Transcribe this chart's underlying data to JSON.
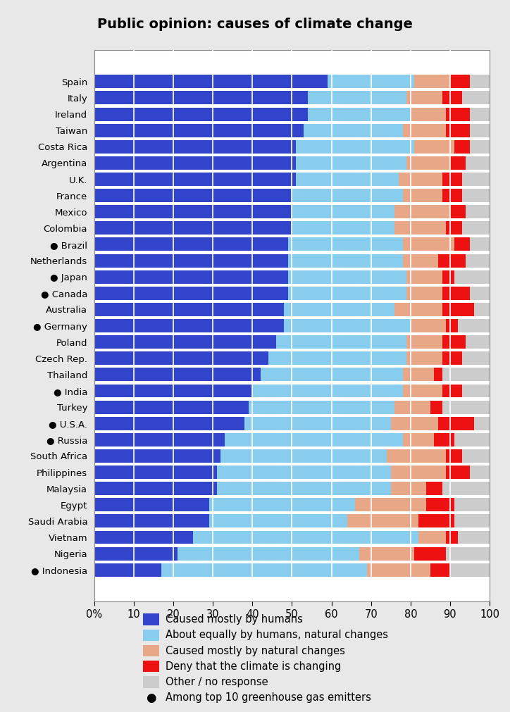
{
  "title": "Public opinion: causes of climate change",
  "background_color": "#e8e8e8",
  "plot_background": "#ffffff",
  "countries": [
    "Spain",
    "Italy",
    "Ireland",
    "Taiwan",
    "Costa Rica",
    "Argentina",
    "U.K.",
    "France",
    "Mexico",
    "Colombia",
    "● Brazil",
    "Netherlands",
    "● Japan",
    "● Canada",
    "Australia",
    "● Germany",
    "Poland",
    "Czech Rep.",
    "Thailand",
    "● India",
    "Turkey",
    "● U.S.A.",
    "● Russia",
    "South Africa",
    "Philippines",
    "Malaysia",
    "Egypt",
    "Saudi Arabia",
    "Vietnam",
    "Nigeria",
    "● Indonesia"
  ],
  "humans": [
    59,
    54,
    54,
    53,
    51,
    51,
    51,
    50,
    50,
    50,
    49,
    49,
    49,
    49,
    48,
    48,
    46,
    44,
    42,
    40,
    39,
    38,
    33,
    32,
    31,
    31,
    29,
    29,
    25,
    21,
    17
  ],
  "equally": [
    22,
    25,
    26,
    25,
    30,
    28,
    26,
    28,
    26,
    26,
    29,
    29,
    30,
    30,
    28,
    32,
    33,
    35,
    36,
    38,
    37,
    37,
    45,
    42,
    44,
    44,
    37,
    35,
    57,
    46,
    52
  ],
  "natural": [
    9,
    9,
    9,
    11,
    10,
    11,
    11,
    10,
    14,
    13,
    13,
    9,
    9,
    9,
    12,
    9,
    9,
    9,
    8,
    10,
    9,
    12,
    8,
    15,
    14,
    9,
    18,
    18,
    7,
    14,
    16
  ],
  "deny": [
    5,
    5,
    6,
    6,
    4,
    4,
    5,
    5,
    4,
    4,
    4,
    7,
    3,
    7,
    8,
    3,
    6,
    5,
    2,
    5,
    3,
    9,
    5,
    4,
    6,
    4,
    7,
    9,
    3,
    8,
    5
  ],
  "other": [
    5,
    7,
    5,
    5,
    5,
    6,
    7,
    7,
    6,
    7,
    5,
    6,
    9,
    5,
    4,
    8,
    6,
    7,
    12,
    7,
    12,
    4,
    9,
    7,
    5,
    12,
    9,
    9,
    8,
    11,
    10
  ],
  "colors": {
    "humans": "#3344cc",
    "equally": "#88ccee",
    "natural": "#e8a888",
    "deny": "#ee1111",
    "other": "#cccccc"
  },
  "legend_labels": [
    "Caused mostly by humans",
    "About equally by humans, natural changes",
    "Caused mostly by natural changes",
    "Deny that the climate is changing",
    "Other / no response",
    "Among top 10 greenhouse gas emitters"
  ],
  "xlabel_ticks": [
    0,
    10,
    20,
    30,
    40,
    50,
    60,
    70,
    80,
    90,
    100
  ],
  "xlabel_labels": [
    "0%",
    "10",
    "20",
    "30",
    "40",
    "50",
    "60",
    "70",
    "80",
    "90",
    "100"
  ]
}
